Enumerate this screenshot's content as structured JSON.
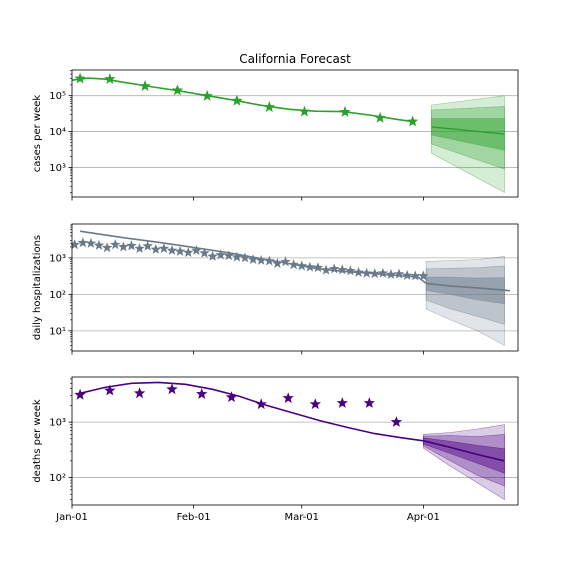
{
  "title": "California Forecast",
  "chart_data": [
    {
      "type": "line",
      "ylabel": "cases per week",
      "yscale": "log",
      "ylim": [
        150,
        520000
      ],
      "ytick_values": [
        1000,
        10000,
        100000
      ],
      "ytick_labels": [
        "10³",
        "10⁴",
        "10⁵"
      ],
      "color": "#2ca02c",
      "grid": "y",
      "observed": {
        "x": [
          3,
          14,
          27,
          39,
          50,
          61,
          73,
          86,
          101,
          114,
          126
        ],
        "y": [
          300000,
          290000,
          185000,
          140000,
          98000,
          72000,
          48000,
          36000,
          35000,
          24000,
          19000
        ]
      },
      "fit": {
        "x": [
          0,
          6,
          12,
          20,
          30,
          40,
          50,
          60,
          70,
          80,
          90,
          100,
          110,
          120,
          126
        ],
        "y": [
          270000,
          310000,
          290000,
          230000,
          175000,
          135000,
          100000,
          75000,
          54000,
          42000,
          37000,
          36000,
          29000,
          22000,
          19000
        ]
      },
      "forecast": {
        "x": [
          133,
          160
        ],
        "median": [
          13500,
          8500
        ],
        "band_50": [
          [
            8000,
            23000
          ],
          [
            3000,
            23000
          ]
        ],
        "band_80": [
          [
            4500,
            40000
          ],
          [
            900,
            50000
          ]
        ],
        "band_95": [
          [
            2500,
            55000
          ],
          [
            200,
            100000
          ]
        ]
      }
    },
    {
      "type": "line",
      "ylabel": "daily hospitalizations",
      "yscale": "log",
      "ylim": [
        2.8,
        8500
      ],
      "ytick_values": [
        10,
        100,
        1000
      ],
      "ytick_labels": [
        "10¹",
        "10²",
        "10³"
      ],
      "color": "#6b7a8a",
      "grid": "y",
      "observed": {
        "x": [
          1,
          4,
          7,
          10,
          13,
          16,
          19,
          22,
          25,
          28,
          31,
          34,
          37,
          40,
          43,
          46,
          49,
          52,
          55,
          58,
          61,
          64,
          67,
          70,
          73,
          76,
          79,
          82,
          85,
          88,
          91,
          94,
          97,
          100,
          103,
          106,
          109,
          112,
          115,
          118,
          121,
          124,
          127,
          130
        ],
        "y": [
          2300,
          2600,
          2500,
          2200,
          1900,
          2300,
          2000,
          2150,
          1800,
          2100,
          1700,
          1800,
          1600,
          1500,
          1400,
          1600,
          1350,
          1100,
          1200,
          1150,
          1050,
          1000,
          900,
          850,
          820,
          700,
          780,
          650,
          600,
          560,
          540,
          460,
          500,
          470,
          440,
          400,
          380,
          370,
          380,
          350,
          360,
          330,
          320,
          320
        ]
      },
      "fit": {
        "x": [
          3,
          10,
          20,
          30,
          40,
          50,
          60,
          70,
          80,
          90,
          100,
          110,
          120,
          128,
          131,
          140,
          150,
          160,
          162
        ],
        "y": [
          5400,
          4500,
          3500,
          2800,
          2200,
          1700,
          1300,
          950,
          700,
          520,
          430,
          380,
          330,
          300,
          200,
          170,
          150,
          130,
          125
        ]
      },
      "forecast": {
        "x": [
          131,
          140,
          150,
          160
        ],
        "median": [
          200,
          170,
          150,
          130
        ],
        "band_50": [
          [
            130,
            300
          ],
          [
            100,
            300
          ],
          [
            70,
            280
          ],
          [
            55,
            290
          ]
        ],
        "band_80": [
          [
            70,
            500
          ],
          [
            40,
            520
          ],
          [
            25,
            540
          ],
          [
            15,
            600
          ]
        ],
        "band_95": [
          [
            40,
            800
          ],
          [
            20,
            850
          ],
          [
            10,
            900
          ],
          [
            4,
            1100
          ]
        ]
      }
    },
    {
      "type": "line",
      "ylabel": "deaths per week",
      "yscale": "log",
      "ylim": [
        32,
        6500
      ],
      "ytick_values": [
        100,
        1000
      ],
      "ytick_labels": [
        "10²",
        "10³"
      ],
      "color": "#4b0082",
      "grid": "y",
      "observed": {
        "x": [
          3,
          14,
          25,
          37,
          48,
          59,
          70,
          80,
          90,
          100,
          110,
          120
        ],
        "y": [
          3100,
          3700,
          3300,
          3900,
          3200,
          2800,
          2100,
          2700,
          2100,
          2200,
          2200,
          1000
        ]
      },
      "fit": {
        "x": [
          3,
          12,
          22,
          32,
          42,
          52,
          62,
          72,
          82,
          92,
          102,
          112,
          122,
          130,
          140,
          150,
          160
        ],
        "y": [
          3300,
          4200,
          5000,
          5200,
          4800,
          3900,
          2900,
          2000,
          1450,
          1050,
          800,
          620,
          520,
          460,
          350,
          260,
          200
        ]
      },
      "forecast": {
        "x": [
          130,
          140,
          150,
          160
        ],
        "median": [
          460,
          350,
          260,
          200
        ],
        "band_50": [
          [
            400,
            520
          ],
          [
            270,
            450
          ],
          [
            180,
            380
          ],
          [
            120,
            330
          ]
        ],
        "band_80": [
          [
            370,
            560
          ],
          [
            200,
            570
          ],
          [
            110,
            550
          ],
          [
            70,
            600
          ]
        ],
        "band_95": [
          [
            340,
            600
          ],
          [
            160,
            650
          ],
          [
            80,
            750
          ],
          [
            40,
            900
          ]
        ]
      }
    }
  ],
  "x_axis": {
    "range": [
      0,
      165
    ],
    "ticks": [
      {
        "value": 0,
        "label": "Jan-01"
      },
      {
        "value": 45,
        "label": "Feb-01"
      },
      {
        "value": 85,
        "label": "Mar-01"
      },
      {
        "value": 130,
        "label": "Apr-01"
      }
    ]
  }
}
